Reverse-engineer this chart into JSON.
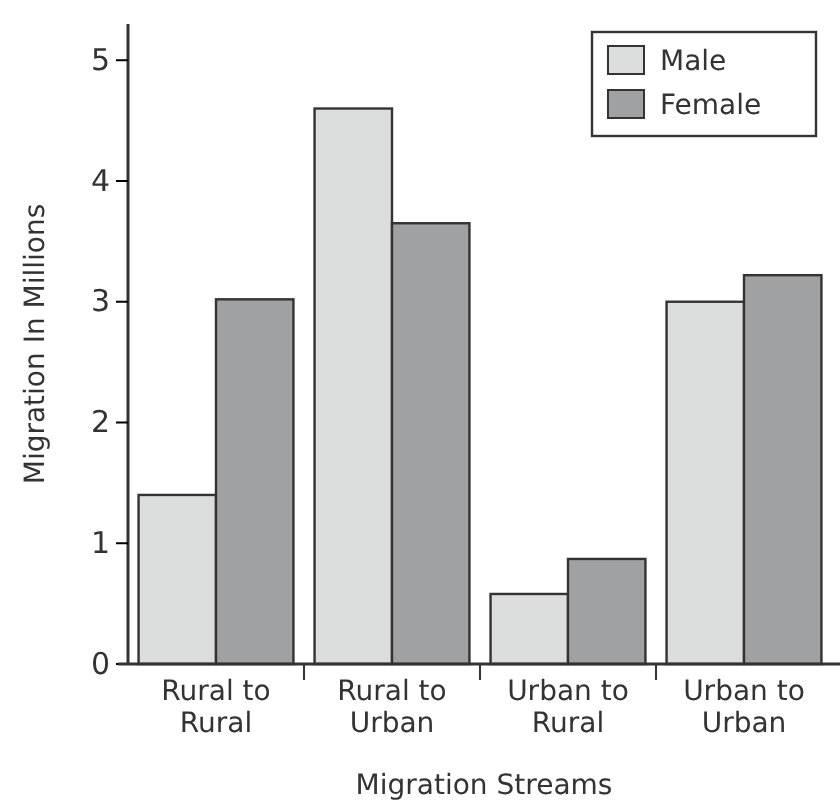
{
  "chart_data": {
    "type": "bar",
    "xlabel": "Migration Streams",
    "ylabel": "Migration In Millions",
    "categories": [
      "Rural to Rural",
      "Rural to Urban",
      "Urban to Rural",
      "Urban to Urban"
    ],
    "series": [
      {
        "name": "Male",
        "color": "#dcdddd",
        "values": [
          1.4,
          4.6,
          0.58,
          3.0
        ]
      },
      {
        "name": "Female",
        "color": "#a0a1a2",
        "values": [
          3.02,
          3.65,
          0.87,
          3.22
        ]
      }
    ],
    "ylim": [
      0,
      5.3
    ],
    "yticks": [
      0,
      1,
      2,
      3,
      4,
      5
    ],
    "legend": "top right",
    "grid": false
  }
}
